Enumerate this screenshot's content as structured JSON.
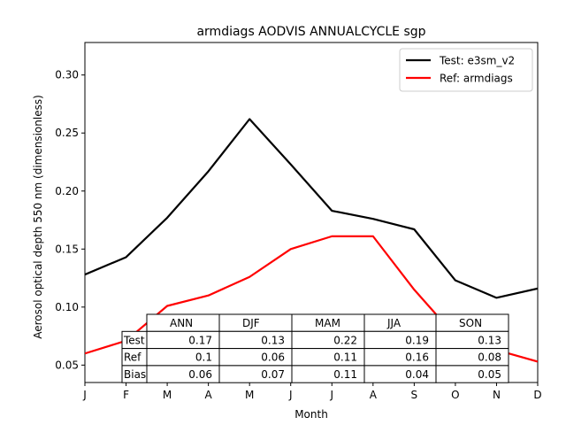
{
  "chart_data": {
    "type": "line",
    "title": "armdiags AODVIS ANNUALCYCLE sgp",
    "xlabel": "Month",
    "ylabel": "Aerosol optical depth 550 nm (dimensionless)",
    "categories": [
      "J",
      "F",
      "M",
      "A",
      "M",
      "J",
      "J",
      "A",
      "S",
      "O",
      "N",
      "D"
    ],
    "ylim": [
      0.035,
      0.328
    ],
    "yticks": [
      0.05,
      0.1,
      0.15,
      0.2,
      0.25,
      0.3
    ],
    "ytick_labels": [
      "0.05",
      "0.10",
      "0.15",
      "0.20",
      "0.25",
      "0.30"
    ],
    "grid": false,
    "legend_position": "top-right",
    "series": [
      {
        "name": "Test: e3sm_v2",
        "color": "#000000",
        "values": [
          0.128,
          0.143,
          0.177,
          0.217,
          0.262,
          0.223,
          0.183,
          0.176,
          0.167,
          0.123,
          0.108,
          0.116
        ]
      },
      {
        "name": "Ref: armdiags",
        "color": "#ff0000",
        "values": [
          0.06,
          0.071,
          0.101,
          0.11,
          0.126,
          0.15,
          0.161,
          0.161,
          0.115,
          0.075,
          0.063,
          0.053
        ]
      }
    ],
    "table": {
      "columns": [
        "ANN",
        "DJF",
        "MAM",
        "JJA",
        "SON"
      ],
      "rows": [
        {
          "label": "Test",
          "values": [
            "0.17",
            "0.13",
            "0.22",
            "0.19",
            "0.13"
          ]
        },
        {
          "label": "Ref",
          "values": [
            "0.1",
            "0.06",
            "0.11",
            "0.16",
            "0.08"
          ]
        },
        {
          "label": "Bias",
          "values": [
            "0.06",
            "0.07",
            "0.11",
            "0.04",
            "0.05"
          ]
        }
      ]
    }
  }
}
